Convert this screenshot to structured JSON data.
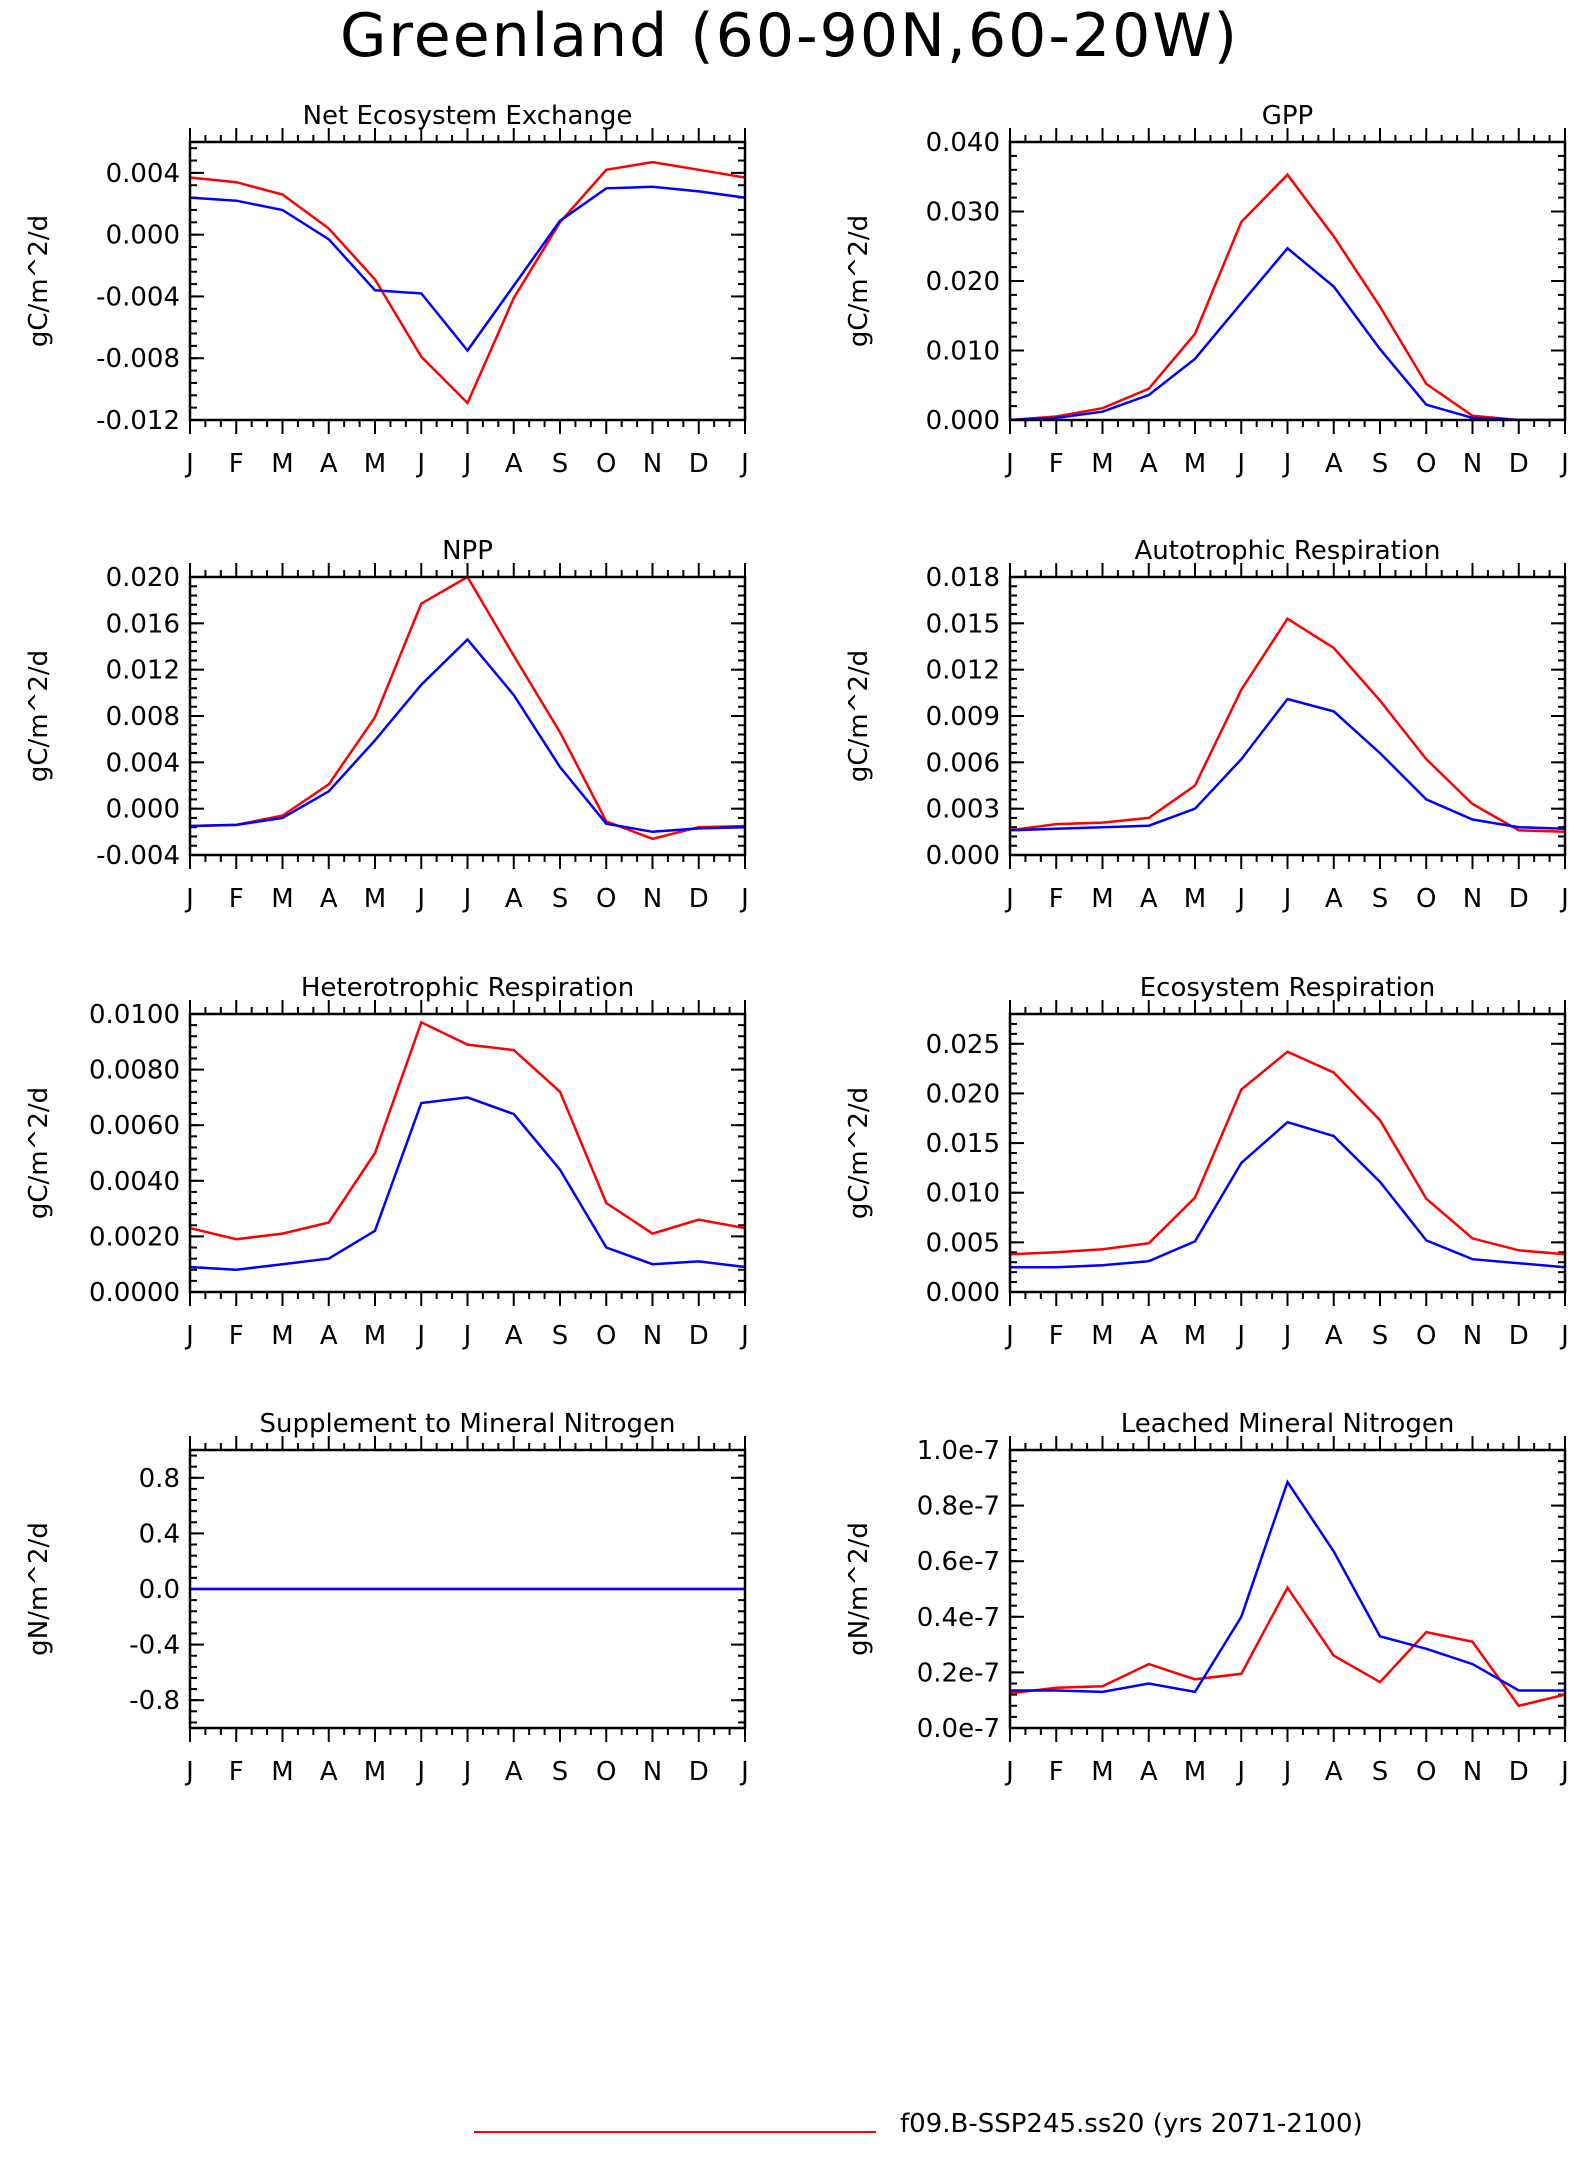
{
  "title": "Greenland (60-90N,60-20W)",
  "legend": {
    "label": "f09.B-SSP245.ss20 (yrs 2071-2100)",
    "color": "#ff0000"
  },
  "colors": {
    "red": "#ff0000",
    "blue": "#0000ff"
  },
  "chart_data": [
    {
      "type": "line",
      "title": "Net Ecosystem Exchange",
      "ylabel": "gC/m^2/d",
      "categories": [
        "J",
        "F",
        "M",
        "A",
        "M",
        "J",
        "J",
        "A",
        "S",
        "O",
        "N",
        "D",
        "J"
      ],
      "ylim": [
        -0.012,
        0.006
      ],
      "yticks": [
        -0.012,
        -0.008,
        -0.004,
        0.0,
        0.004
      ],
      "ytick_labels": [
        "-0.012",
        "-0.008",
        "-0.004",
        "0.000",
        "0.004"
      ],
      "series": [
        {
          "color": "#ff0000",
          "values": [
            0.0037,
            0.0034,
            0.0026,
            0.0004,
            -0.0029,
            -0.0079,
            -0.0109,
            -0.0041,
            0.0008,
            0.0042,
            0.0047,
            0.0042,
            0.0037
          ]
        },
        {
          "color": "#0000ff",
          "values": [
            0.0024,
            0.0022,
            0.0016,
            -0.0003,
            -0.0036,
            -0.0038,
            -0.0075,
            -0.0033,
            0.0009,
            0.003,
            0.0031,
            0.0028,
            0.0024
          ]
        }
      ]
    },
    {
      "type": "line",
      "title": "GPP",
      "ylabel": "gC/m^2/d",
      "categories": [
        "J",
        "F",
        "M",
        "A",
        "M",
        "J",
        "J",
        "A",
        "S",
        "O",
        "N",
        "D",
        "J"
      ],
      "ylim": [
        0.0,
        0.04
      ],
      "yticks": [
        0.0,
        0.01,
        0.02,
        0.03,
        0.04
      ],
      "ytick_labels": [
        "0.000",
        "0.010",
        "0.020",
        "0.030",
        "0.040"
      ],
      "series": [
        {
          "color": "#ff0000",
          "values": [
            0.0,
            0.0005,
            0.0017,
            0.0045,
            0.0124,
            0.0285,
            0.0353,
            0.0264,
            0.0163,
            0.0052,
            0.0006,
            0.0,
            0.0
          ]
        },
        {
          "color": "#0000ff",
          "values": [
            0.0,
            0.0003,
            0.0012,
            0.0036,
            0.0088,
            0.0168,
            0.0247,
            0.0192,
            0.0102,
            0.0022,
            0.0003,
            0.0,
            0.0
          ]
        }
      ]
    },
    {
      "type": "line",
      "title": "NPP",
      "ylabel": "gC/m^2/d",
      "categories": [
        "J",
        "F",
        "M",
        "A",
        "M",
        "J",
        "J",
        "A",
        "S",
        "O",
        "N",
        "D",
        "J"
      ],
      "ylim": [
        -0.004,
        0.02
      ],
      "yticks": [
        -0.004,
        0.0,
        0.004,
        0.008,
        0.012,
        0.016,
        0.02
      ],
      "ytick_labels": [
        "-0.004",
        "0.000",
        "0.004",
        "0.008",
        "0.012",
        "0.016",
        "0.020"
      ],
      "series": [
        {
          "color": "#ff0000",
          "values": [
            -0.0015,
            -0.0014,
            -0.0006,
            0.0021,
            0.0079,
            0.0177,
            0.02,
            0.0132,
            0.0066,
            -0.0011,
            -0.0026,
            -0.0016,
            -0.0015
          ]
        },
        {
          "color": "#0000ff",
          "values": [
            -0.0015,
            -0.0014,
            -0.0008,
            0.0015,
            0.0059,
            0.0107,
            0.0146,
            0.0098,
            0.0036,
            -0.0013,
            -0.002,
            -0.0017,
            -0.0016
          ]
        }
      ]
    },
    {
      "type": "line",
      "title": "Autotrophic Respiration",
      "ylabel": "gC/m^2/d",
      "categories": [
        "J",
        "F",
        "M",
        "A",
        "M",
        "J",
        "J",
        "A",
        "S",
        "O",
        "N",
        "D",
        "J"
      ],
      "ylim": [
        0.0,
        0.018
      ],
      "yticks": [
        0.0,
        0.003,
        0.006,
        0.009,
        0.012,
        0.015,
        0.018
      ],
      "ytick_labels": [
        "0.000",
        "0.003",
        "0.006",
        "0.009",
        "0.012",
        "0.015",
        "0.018"
      ],
      "series": [
        {
          "color": "#ff0000",
          "values": [
            0.0016,
            0.002,
            0.0021,
            0.0024,
            0.0045,
            0.0107,
            0.0153,
            0.0134,
            0.01,
            0.0062,
            0.0033,
            0.0016,
            0.0015
          ]
        },
        {
          "color": "#0000ff",
          "values": [
            0.0016,
            0.0017,
            0.0018,
            0.0019,
            0.003,
            0.0062,
            0.0101,
            0.0093,
            0.0066,
            0.0036,
            0.0023,
            0.0018,
            0.0017
          ]
        }
      ]
    },
    {
      "type": "line",
      "title": "Heterotrophic Respiration",
      "ylabel": "gC/m^2/d",
      "categories": [
        "J",
        "F",
        "M",
        "A",
        "M",
        "J",
        "J",
        "A",
        "S",
        "O",
        "N",
        "D",
        "J"
      ],
      "ylim": [
        0.0,
        0.01
      ],
      "yticks": [
        0.0,
        0.002,
        0.004,
        0.006,
        0.008,
        0.01
      ],
      "ytick_labels": [
        "0.0000",
        "0.0020",
        "0.0040",
        "0.0060",
        "0.0080",
        "0.0100"
      ],
      "series": [
        {
          "color": "#ff0000",
          "values": [
            0.0023,
            0.0019,
            0.0021,
            0.0025,
            0.005,
            0.0097,
            0.0089,
            0.0087,
            0.0072,
            0.0032,
            0.0021,
            0.0026,
            0.0023
          ]
        },
        {
          "color": "#0000ff",
          "values": [
            0.0009,
            0.0008,
            0.001,
            0.0012,
            0.0022,
            0.0068,
            0.007,
            0.0064,
            0.0044,
            0.0016,
            0.001,
            0.0011,
            0.0009
          ]
        }
      ]
    },
    {
      "type": "line",
      "title": "Ecosystem Respiration",
      "ylabel": "gC/m^2/d",
      "categories": [
        "J",
        "F",
        "M",
        "A",
        "M",
        "J",
        "J",
        "A",
        "S",
        "O",
        "N",
        "D",
        "J"
      ],
      "ylim": [
        0.0,
        0.028
      ],
      "yticks": [
        0.0,
        0.005,
        0.01,
        0.015,
        0.02,
        0.025
      ],
      "ytick_labels": [
        "0.000",
        "0.005",
        "0.010",
        "0.015",
        "0.020",
        "0.025"
      ],
      "series": [
        {
          "color": "#ff0000",
          "values": [
            0.0038,
            0.004,
            0.0043,
            0.0049,
            0.0095,
            0.0204,
            0.0242,
            0.0221,
            0.0173,
            0.0094,
            0.0054,
            0.0042,
            0.0038
          ]
        },
        {
          "color": "#0000ff",
          "values": [
            0.0025,
            0.0025,
            0.0027,
            0.0031,
            0.0051,
            0.013,
            0.0171,
            0.0157,
            0.0111,
            0.0052,
            0.0033,
            0.0029,
            0.0025
          ]
        }
      ]
    },
    {
      "type": "line",
      "title": "Supplement to Mineral Nitrogen",
      "ylabel": "gN/m^2/d",
      "categories": [
        "J",
        "F",
        "M",
        "A",
        "M",
        "J",
        "J",
        "A",
        "S",
        "O",
        "N",
        "D",
        "J"
      ],
      "ylim": [
        -1.0,
        1.0
      ],
      "yticks": [
        -0.8,
        -0.4,
        0.0,
        0.4,
        0.8
      ],
      "ytick_labels": [
        "-0.8",
        "-0.4",
        "0.0",
        "0.4",
        "0.8"
      ],
      "series": [
        {
          "color": "#ff0000",
          "values": [
            0,
            0,
            0,
            0,
            0,
            0,
            0,
            0,
            0,
            0,
            0,
            0,
            0
          ]
        },
        {
          "color": "#0000ff",
          "values": [
            0,
            0,
            0,
            0,
            0,
            0,
            0,
            0,
            0,
            0,
            0,
            0,
            0
          ]
        }
      ]
    },
    {
      "type": "line",
      "title": "Leached Mineral Nitrogen",
      "ylabel": "gN/m^2/d",
      "categories": [
        "J",
        "F",
        "M",
        "A",
        "M",
        "J",
        "J",
        "A",
        "S",
        "O",
        "N",
        "D",
        "J"
      ],
      "ylim": [
        0.0,
        1e-07
      ],
      "yticks": [
        0.0,
        2e-08,
        4e-08,
        6e-08,
        8e-08,
        1e-07
      ],
      "ytick_labels": [
        "0.0e-7",
        "0.2e-7",
        "0.4e-7",
        "0.6e-7",
        "0.8e-7",
        "1.0e-7"
      ],
      "series": [
        {
          "color": "#ff0000",
          "values": [
            1.25e-08,
            1.45e-08,
            1.5e-08,
            2.3e-08,
            1.75e-08,
            1.95e-08,
            5.05e-08,
            2.6e-08,
            1.65e-08,
            3.45e-08,
            3.1e-08,
            8e-09,
            1.2e-08
          ]
        },
        {
          "color": "#0000ff",
          "values": [
            1.35e-08,
            1.35e-08,
            1.3e-08,
            1.6e-08,
            1.3e-08,
            4e-08,
            8.85e-08,
            6.35e-08,
            3.3e-08,
            2.85e-08,
            2.3e-08,
            1.35e-08,
            1.35e-08
          ]
        }
      ]
    }
  ]
}
